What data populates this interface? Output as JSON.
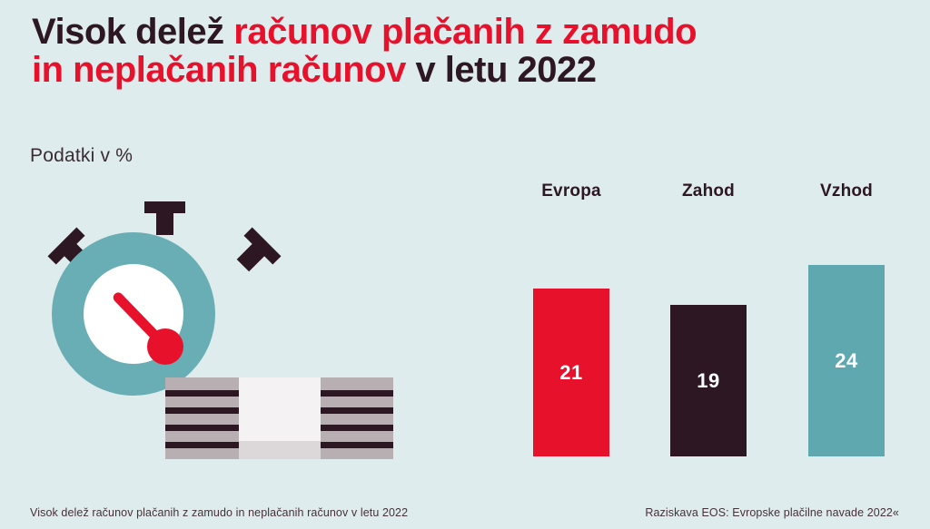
{
  "colors": {
    "background": "#dfeced",
    "red": "#e8112c",
    "dark": "#2d1722",
    "teal": "#5fa8b0",
    "ring_teal": "#69aeb4"
  },
  "title": {
    "part1": "Visok delež ",
    "part2": "računov plačanih z zamudo",
    "part3": "in neplačanih računov ",
    "part4": "v letu 2022"
  },
  "unit_label": "Podatki v %",
  "illustration": {
    "icon": "stopwatch-money-icon"
  },
  "chart_data": {
    "type": "bar",
    "title": "Visok delež računov plačanih z zamudo in neplačanih računov v letu 2022",
    "categories": [
      "Evropa",
      "Zahod",
      "Vzhod"
    ],
    "values": [
      21,
      19,
      24
    ],
    "colors": [
      "#e8112c",
      "#2d1722",
      "#5fa8b0"
    ],
    "value_label_color": "#ffffff",
    "ylabel": "Podatki v %",
    "ylim": [
      0,
      24
    ],
    "grid": false,
    "legend": false
  },
  "footer": {
    "left": "Visok delež računov plačanih z zamudo in neplačanih računov v letu 2022",
    "right": "Raziskava EOS: Evropske plačilne navade 2022«"
  }
}
